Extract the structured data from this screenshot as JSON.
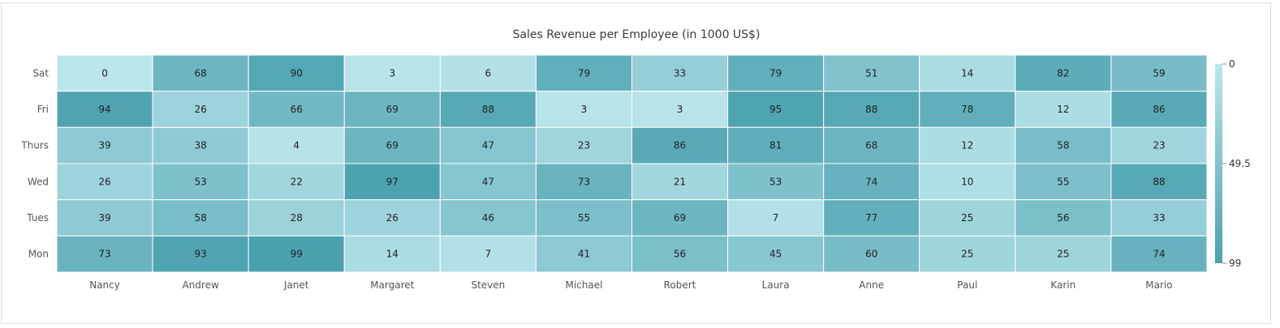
{
  "chart_data": {
    "type": "heatmap",
    "title": "Sales Revenue per Employee (in 1000 US$)",
    "x_categories": [
      "Nancy",
      "Andrew",
      "Janet",
      "Margaret",
      "Steven",
      "Michael",
      "Robert",
      "Laura",
      "Anne",
      "Paul",
      "Karin",
      "Mario"
    ],
    "y_categories": [
      "Sat",
      "Fri",
      "Thurs",
      "Wed",
      "Tues",
      "Mon"
    ],
    "values": [
      [
        0,
        68,
        90,
        3,
        6,
        79,
        33,
        79,
        51,
        14,
        82,
        59
      ],
      [
        94,
        26,
        66,
        69,
        88,
        3,
        3,
        95,
        88,
        78,
        12,
        86
      ],
      [
        39,
        38,
        4,
        69,
        47,
        23,
        86,
        81,
        68,
        12,
        58,
        23
      ],
      [
        26,
        53,
        22,
        97,
        47,
        73,
        21,
        53,
        74,
        10,
        55,
        88
      ],
      [
        39,
        58,
        28,
        26,
        46,
        55,
        69,
        7,
        77,
        25,
        56,
        33
      ],
      [
        73,
        93,
        99,
        14,
        7,
        41,
        56,
        45,
        60,
        25,
        25,
        74
      ]
    ],
    "range": [
      0,
      99
    ],
    "color_low": "#BBE5EC",
    "color_high": "#4AA1AE",
    "legend": {
      "labels": [
        "0",
        "49.5",
        "99"
      ],
      "placement": "right"
    }
  }
}
